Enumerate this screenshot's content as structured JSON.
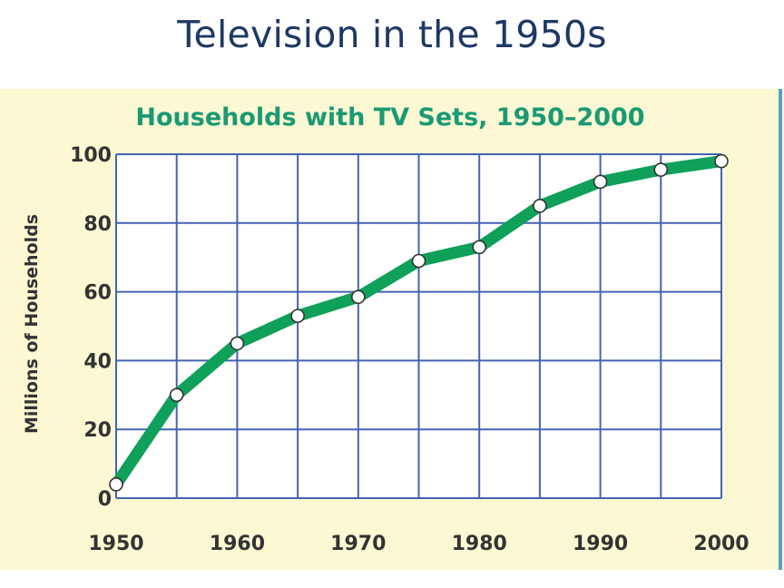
{
  "slide": {
    "title": "Television in the 1950s"
  },
  "colors": {
    "title": "#1f3864",
    "panel_background": "#fbf8d3",
    "chart_title": "#1a9a72",
    "grid": "#4463b3",
    "line": "#0fa05a",
    "marker_fill": "#ffffff",
    "marker_stroke": "#333333",
    "text": "#333333"
  },
  "chart_data": {
    "type": "line",
    "title": "Households with TV Sets, 1950–2000",
    "xlabel": "",
    "ylabel": "Millions of Households",
    "x": [
      1950,
      1955,
      1960,
      1965,
      1970,
      1975,
      1980,
      1985,
      1990,
      1995,
      2000
    ],
    "series": [
      {
        "values": [
          4,
          30,
          45,
          53,
          58.5,
          69,
          73,
          85,
          92,
          95.5,
          98
        ]
      }
    ],
    "xlim": [
      1950,
      2000
    ],
    "ylim": [
      0,
      100
    ],
    "x_ticks": [
      1950,
      1960,
      1970,
      1980,
      1990,
      2000
    ],
    "y_ticks": [
      0,
      20,
      40,
      60,
      80,
      100
    ],
    "x_grid_step": 5,
    "y_grid_step": 20,
    "grid": true,
    "markers": "open-circle",
    "legend": "none"
  }
}
